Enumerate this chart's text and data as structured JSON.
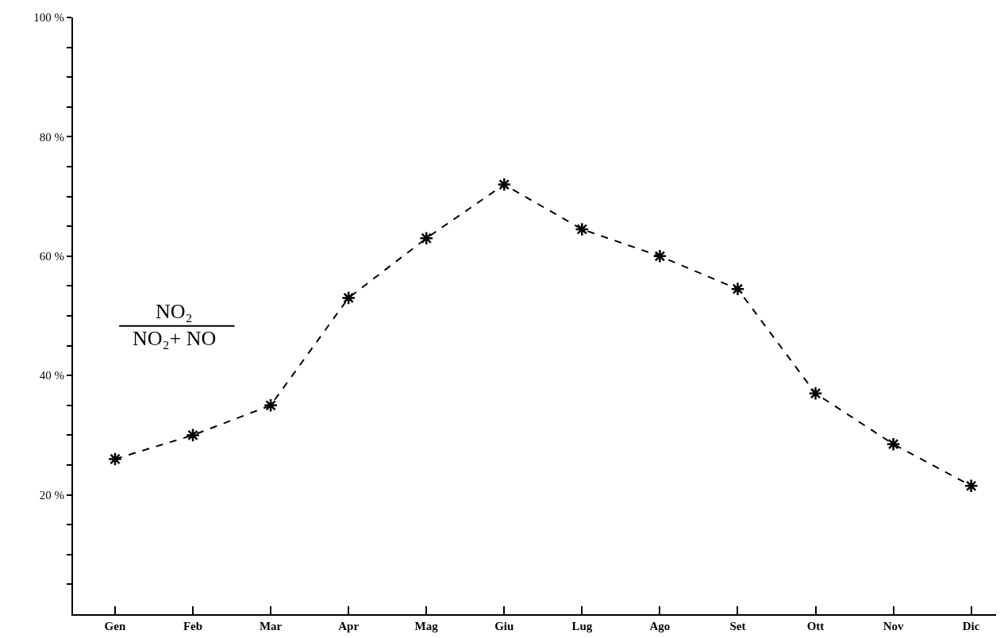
{
  "chart_data": {
    "type": "line",
    "categories": [
      "Gen",
      "Feb",
      "Mar",
      "Apr",
      "Mag",
      "Giu",
      "Lug",
      "Ago",
      "Set",
      "Ott",
      "Nov",
      "Dic"
    ],
    "series": [
      {
        "color": "#000000",
        "values": [
          26,
          30,
          35,
          53,
          63,
          72,
          64.5,
          60,
          54.5,
          37,
          28.5,
          21.5
        ]
      }
    ],
    "ylim": [
      0,
      100
    ],
    "yticks": [
      {
        "value": 5,
        "label": null
      },
      {
        "value": 10,
        "label": null
      },
      {
        "value": 15,
        "label": null
      },
      {
        "value": 20,
        "label": "20 %"
      },
      {
        "value": 25,
        "label": null
      },
      {
        "value": 30,
        "label": null
      },
      {
        "value": 35,
        "label": null
      },
      {
        "value": 40,
        "label": "40 %"
      },
      {
        "value": 45,
        "label": null
      },
      {
        "value": 50,
        "label": null
      },
      {
        "value": 55,
        "label": null
      },
      {
        "value": 60,
        "label": "60 %"
      },
      {
        "value": 65,
        "label": null
      },
      {
        "value": 70,
        "label": null
      },
      {
        "value": 75,
        "label": null
      },
      {
        "value": 80,
        "label": "80 %"
      },
      {
        "value": 85,
        "label": null
      },
      {
        "value": 90,
        "label": null
      },
      {
        "value": 95,
        "label": null
      },
      {
        "value": 100,
        "label": "100 %"
      }
    ],
    "annotations": [
      "NO₂",
      "NO₂+ NO"
    ],
    "grid": false,
    "marker": "cross",
    "line_style": "dashed"
  }
}
